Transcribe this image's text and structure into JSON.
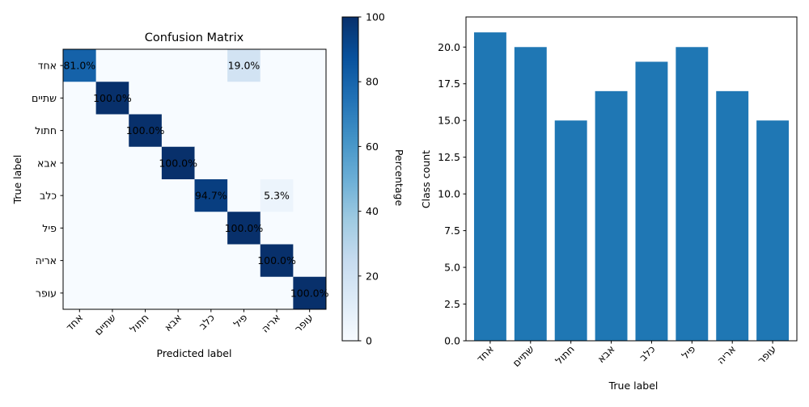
{
  "chart_data": [
    {
      "type": "heatmap",
      "title": "Confusion Matrix",
      "xlabel": "Predicted label",
      "ylabel": "True label",
      "y_categories": [
        "אחד",
        "שתיים",
        "חתול",
        "אבא",
        "כלב",
        "פיל",
        "אריה",
        "עופר"
      ],
      "x_categories": [
        "אחד",
        "שתיים",
        "חתול",
        "אבא",
        "כלב",
        "פיל",
        "אריה",
        "עופר"
      ],
      "colormap": "Blues",
      "colorbar": {
        "label": "Percentage",
        "range": [
          0,
          100
        ],
        "ticks": [
          0,
          20,
          40,
          60,
          80,
          100
        ]
      },
      "values": [
        [
          81.0,
          0,
          0,
          0,
          0,
          19.0,
          0,
          0
        ],
        [
          0,
          100.0,
          0,
          0,
          0,
          0,
          0,
          0
        ],
        [
          0,
          0,
          100.0,
          0,
          0,
          0,
          0,
          0
        ],
        [
          0,
          0,
          0,
          100.0,
          0,
          0,
          0,
          0
        ],
        [
          0,
          0,
          0,
          0,
          94.7,
          0,
          5.3,
          0
        ],
        [
          0,
          0,
          0,
          0,
          0,
          100.0,
          0,
          0
        ],
        [
          0,
          0,
          0,
          0,
          0,
          0,
          100.0,
          0
        ],
        [
          0,
          0,
          0,
          0,
          0,
          0,
          0,
          100.0
        ]
      ],
      "cell_labels": [
        [
          "81.0%",
          "",
          "",
          "",
          "",
          "19.0%",
          "",
          ""
        ],
        [
          "",
          "100.0%",
          "",
          "",
          "",
          "",
          "",
          ""
        ],
        [
          "",
          "",
          "100.0%",
          "",
          "",
          "",
          "",
          ""
        ],
        [
          "",
          "",
          "",
          "100.0%",
          "",
          "",
          "",
          ""
        ],
        [
          "",
          "",
          "",
          "",
          "94.7%",
          "",
          "5.3%",
          ""
        ],
        [
          "",
          "",
          "",
          "",
          "",
          "100.0%",
          "",
          ""
        ],
        [
          "",
          "",
          "",
          "",
          "",
          "",
          "100.0%",
          ""
        ],
        [
          "",
          "",
          "",
          "",
          "",
          "",
          "",
          "100.0%"
        ]
      ],
      "grid": false
    },
    {
      "type": "bar",
      "title": "",
      "xlabel": "True label",
      "ylabel": "Class count",
      "categories": [
        "אחד",
        "שתיים",
        "חתול",
        "אבא",
        "כלב",
        "פיל",
        "אריה",
        "עופר"
      ],
      "values": [
        21,
        20,
        15,
        17,
        19,
        20,
        17,
        15
      ],
      "ylim": [
        0,
        22.05
      ],
      "yticks": [
        "0.0",
        "2.5",
        "5.0",
        "7.5",
        "10.0",
        "12.5",
        "15.0",
        "17.5",
        "20.0"
      ],
      "color": "#1f77b4",
      "grid": false
    }
  ]
}
